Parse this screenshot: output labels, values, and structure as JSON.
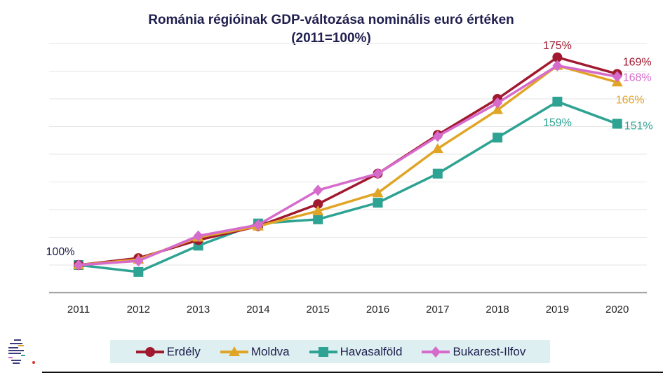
{
  "chart_data": {
    "type": "line",
    "title": "Románia régióinak GDP-változása nominális euró értéken",
    "subtitle": "(2011=100%)",
    "xlabel": "",
    "ylabel": "",
    "categories": [
      "2011",
      "2012",
      "2013",
      "2014",
      "2015",
      "2016",
      "2017",
      "2018",
      "2019",
      "2020"
    ],
    "ylim": [
      90,
      180
    ],
    "y_unit": "%",
    "grid": true,
    "y_tick_labels_shown": false,
    "legend_position": "bottom",
    "series": [
      {
        "name": "Erdély",
        "color": "#a0192f",
        "marker": "circle",
        "values": [
          100,
          102.5,
          109,
          114,
          122,
          133,
          147,
          160,
          175,
          169
        ]
      },
      {
        "name": "Moldva",
        "color": "#e0a526",
        "marker": "triangle",
        "values": [
          100,
          102,
          110,
          114,
          119.5,
          126,
          142,
          156,
          172,
          166
        ]
      },
      {
        "name": "Havasalföld",
        "color": "#2fa393",
        "marker": "square",
        "values": [
          100,
          97.5,
          107,
          115,
          116.5,
          122.5,
          133,
          146,
          159,
          151
        ]
      },
      {
        "name": "Bukarest-Ilfov",
        "color": "#d66bcc",
        "marker": "diamond",
        "values": [
          100,
          101.5,
          110.5,
          114.5,
          127,
          133,
          146.5,
          158.5,
          172,
          168
        ]
      }
    ],
    "annotations": [
      {
        "text": "100%",
        "series": "Erdély",
        "x": "2011",
        "color": "#1f1f4f"
      },
      {
        "text": "175%",
        "series": "Erdély",
        "x": "2019",
        "color": "#a0192f"
      },
      {
        "text": "169%",
        "series": "Erdély",
        "x": "2020",
        "color": "#a0192f"
      },
      {
        "text": "168%",
        "series": "Bukarest-Ilfov",
        "x": "2020",
        "color": "#d66bcc"
      },
      {
        "text": "166%",
        "series": "Moldva",
        "x": "2020",
        "color": "#e0a526"
      },
      {
        "text": "159%",
        "series": "Havasalföld",
        "x": "2019",
        "color": "#2fa393"
      },
      {
        "text": "151%",
        "series": "Havasalföld",
        "x": "2020",
        "color": "#2fa393"
      }
    ]
  }
}
